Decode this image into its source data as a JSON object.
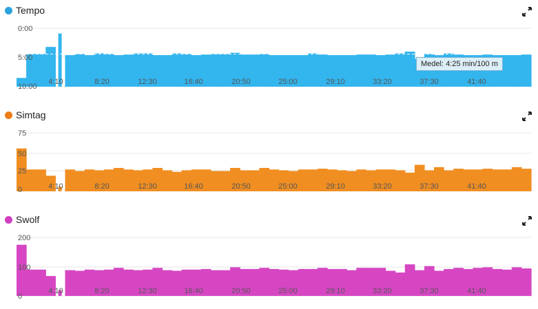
{
  "x_ticks": [
    "4:10",
    "8:20",
    "12:30",
    "16:40",
    "20:50",
    "25:00",
    "29:10",
    "33:20",
    "37:30",
    "41:40"
  ],
  "colors": {
    "tempo": "#33b5ee",
    "simtag": "#f08e22",
    "swolf": "#d646c3",
    "grid": "#e6e6e6"
  },
  "icons": {
    "expand": "expand-icon"
  },
  "panels": {
    "tempo": {
      "title": "Tempo",
      "yticks": [
        "0:00",
        "5:00",
        "10:00"
      ],
      "tooltip": "Medel: 4:25 min/100 m"
    },
    "simtag": {
      "title": "Simtag",
      "yticks": [
        "75",
        "50",
        "25",
        "0"
      ]
    },
    "swolf": {
      "title": "Swolf",
      "yticks": [
        "200",
        "100",
        "0"
      ]
    }
  },
  "chart_data": [
    {
      "type": "area",
      "title": "Tempo",
      "unit": "min/100 m",
      "ylim": [
        10,
        0
      ],
      "reversed_y": true,
      "average": 4.42,
      "values": [
        8.5,
        4.4,
        4.4,
        3.2,
        0.9,
        4.6,
        4.4,
        4.6,
        4.3,
        4.4,
        4.6,
        4.5,
        4.3,
        4.3,
        4.6,
        4.6,
        4.3,
        4.4,
        4.6,
        4.5,
        4.4,
        4.4,
        4.2,
        4.5,
        4.5,
        4.4,
        4.6,
        4.6,
        4.6,
        4.6,
        4.3,
        4.5,
        4.6,
        4.6,
        4.6,
        4.5,
        4.5,
        4.6,
        4.5,
        4.3,
        4.0,
        5.2,
        4.4,
        4.6,
        4.3,
        4.5,
        4.6,
        4.6,
        4.5,
        4.6,
        4.6,
        4.6,
        4.5
      ]
    },
    {
      "type": "area",
      "title": "Simtag",
      "ylim": [
        0,
        75
      ],
      "values": [
        55,
        28,
        28,
        20,
        6,
        28,
        26,
        28,
        27,
        28,
        30,
        28,
        27,
        28,
        30,
        27,
        25,
        27,
        28,
        28,
        26,
        26,
        30,
        27,
        27,
        30,
        28,
        27,
        26,
        28,
        28,
        29,
        28,
        27,
        26,
        28,
        27,
        28,
        28,
        27,
        24,
        34,
        27,
        31,
        27,
        29,
        28,
        28,
        29,
        28,
        28,
        31,
        29
      ]
    },
    {
      "type": "area",
      "title": "Swolf",
      "ylim": [
        0,
        200
      ],
      "values": [
        175,
        90,
        90,
        68,
        20,
        88,
        86,
        90,
        88,
        90,
        96,
        90,
        88,
        90,
        96,
        88,
        86,
        90,
        90,
        92,
        88,
        88,
        98,
        92,
        92,
        96,
        92,
        90,
        88,
        92,
        92,
        96,
        92,
        92,
        88,
        96,
        96,
        96,
        86,
        80,
        108,
        88,
        102,
        86,
        92,
        96,
        92,
        96,
        98,
        92,
        90,
        98,
        94
      ]
    }
  ]
}
